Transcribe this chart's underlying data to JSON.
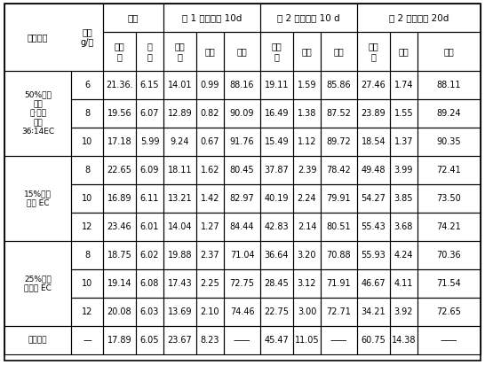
{
  "title": "",
  "col_headers_row1": [
    "",
    "",
    "药前",
    "",
    "第 1 次施药后 10d",
    "",
    "",
    "第 2 次施药后 10 d",
    "",
    "",
    "第 2 次施药后 20d",
    "",
    ""
  ],
  "col_headers_row2": [
    "药剂处理",
    "剂量\ng/亩",
    "病株率",
    "病指",
    "病株率",
    "病指",
    "防效",
    "病株率",
    "病指",
    "防效",
    "病株率",
    "病指",
    "防效"
  ],
  "row_groups": [
    {
      "label": "50%吡唑\n醚菌\n酯·氯亮\n菌酯\n36∶14EC",
      "rows": [
        [
          "6",
          "21.36.",
          "6.15",
          "14.01",
          "0.99",
          "88.16",
          "19.11",
          "1.59",
          "85.86",
          "27.46",
          "1.74",
          "88.11"
        ],
        [
          "8",
          "19.56",
          "6.07",
          "12.89",
          "0.82",
          "90.09",
          "16.49",
          "1.38",
          "87.52",
          "23.89",
          "1.55",
          "89.24"
        ],
        [
          "10",
          "17.18",
          "5.99",
          "9.24",
          "0.67",
          "91.76",
          "15.49",
          "1.12",
          "89.72",
          "18.54",
          "1.37",
          "90.35"
        ]
      ]
    },
    {
      "label": "15%氯亮\n菌酯 EC",
      "rows": [
        [
          "8",
          "22.65",
          "6.09",
          "18.11",
          "1.62",
          "80.45",
          "37.87",
          "2.39",
          "78.42",
          "49.48",
          "3.99",
          "72.41"
        ],
        [
          "10",
          "16.89",
          "6.11",
          "13.21",
          "1.42",
          "82.97",
          "40.19",
          "2.24",
          "79.91",
          "54.27",
          "3.85",
          "73.50"
        ],
        [
          "12",
          "23.46",
          "6.01",
          "14.04",
          "1.27",
          "84.44",
          "42.83",
          "2.14",
          "80.51",
          "55.43",
          "3.68",
          "74.21"
        ]
      ]
    },
    {
      "label": "25%吡唑\n醚菌酯 EC",
      "rows": [
        [
          "8",
          "18.75",
          "6.02",
          "19.88",
          "2.37",
          "71.04",
          "36.64",
          "3.20",
          "70.88",
          "55.93",
          "4.24",
          "70.36"
        ],
        [
          "10",
          "19.14",
          "6.08",
          "17.43",
          "2.25",
          "72.75",
          "28.45",
          "3.12",
          "71.91",
          "46.67",
          "4.11",
          "71.54"
        ],
        [
          "12",
          "20.08",
          "6.03",
          "13.69",
          "2.10",
          "74.46",
          "22.75",
          "3.00",
          "72.71",
          "34.21",
          "3.92",
          "72.65"
        ]
      ]
    },
    {
      "label": "清水对照",
      "rows": [
        [
          "—",
          "17.89",
          "6.05",
          "23.67",
          "8.23",
          "——",
          "45.47",
          "11.05",
          "——",
          "60.75",
          "14.38",
          "——"
        ]
      ]
    }
  ],
  "bg_color": "#ffffff",
  "header_bg": "#ffffff",
  "text_color": "#000000",
  "border_color": "#000000"
}
